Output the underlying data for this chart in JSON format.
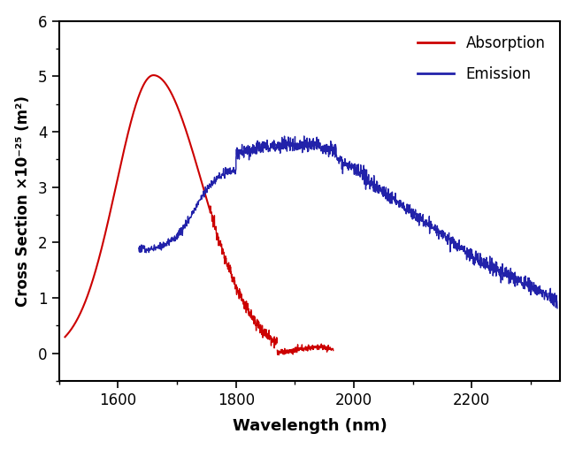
{
  "title": "",
  "xlabel": "Wavelength (nm)",
  "ylabel": "Cross Section ×10⁻²⁵ (m²)",
  "xlim": [
    1500,
    2350
  ],
  "ylim": [
    -0.5,
    6
  ],
  "yticks": [
    0,
    1,
    2,
    3,
    4,
    5,
    6
  ],
  "xticks": [
    1600,
    1800,
    2000,
    2200
  ],
  "absorption_color": "#cc0000",
  "emission_color": "#2222aa",
  "legend_labels": [
    "Absorption",
    "Emission"
  ],
  "figsize": [
    6.5,
    5.08
  ],
  "dpi": 100
}
